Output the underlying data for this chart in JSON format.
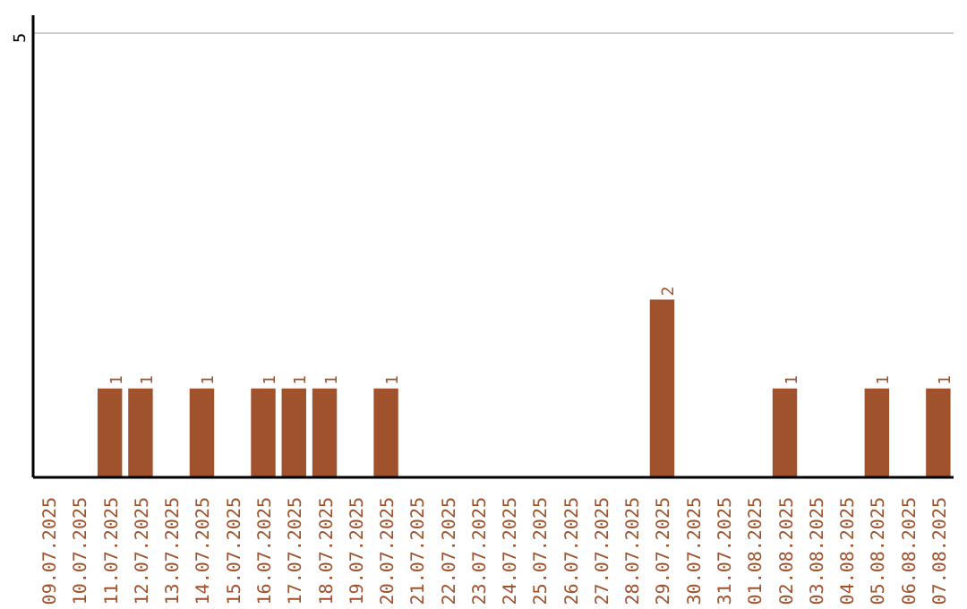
{
  "chart_data": {
    "type": "bar",
    "categories": [
      "09.07.2025",
      "10.07.2025",
      "11.07.2025",
      "12.07.2025",
      "13.07.2025",
      "14.07.2025",
      "15.07.2025",
      "16.07.2025",
      "17.07.2025",
      "18.07.2025",
      "19.07.2025",
      "20.07.2025",
      "21.07.2025",
      "22.07.2025",
      "23.07.2025",
      "24.07.2025",
      "25.07.2025",
      "26.07.2025",
      "27.07.2025",
      "28.07.2025",
      "29.07.2025",
      "30.07.2025",
      "31.07.2025",
      "01.08.2025",
      "02.08.2025",
      "03.08.2025",
      "04.08.2025",
      "05.08.2025",
      "06.08.2025",
      "07.08.2025"
    ],
    "values": [
      0,
      0,
      1,
      1,
      0,
      1,
      0,
      1,
      1,
      1,
      0,
      1,
      0,
      0,
      0,
      0,
      0,
      0,
      0,
      0,
      2,
      0,
      0,
      0,
      1,
      0,
      0,
      1,
      0,
      1
    ],
    "value_labels": [
      null,
      null,
      "1",
      "1",
      null,
      "1",
      null,
      "1",
      "1",
      "1",
      null,
      "1",
      null,
      null,
      null,
      null,
      null,
      null,
      null,
      null,
      "2",
      null,
      null,
      null,
      "1",
      null,
      null,
      "1",
      null,
      "1"
    ],
    "color": "#a0522d",
    "ylim": [
      0,
      5.2
    ],
    "yticks": [
      5
    ],
    "grid": "y"
  }
}
